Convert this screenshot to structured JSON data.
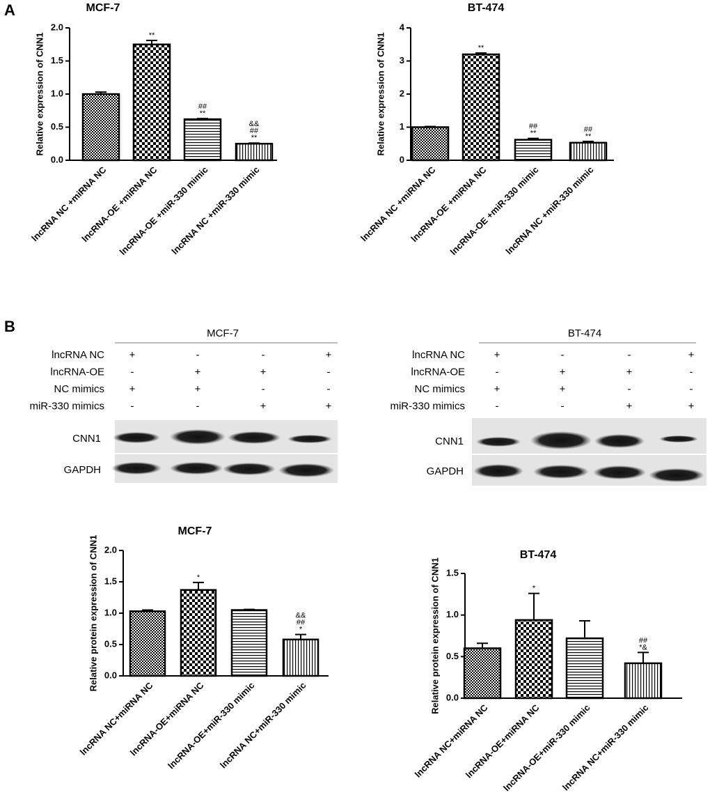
{
  "panels": [
    "A",
    "B"
  ],
  "chart_data": [
    {
      "type": "bar",
      "title": "MCF-7",
      "ylabel": "Relative expression of CNN1",
      "categories": [
        "lncRNA NC +miRNA NC",
        "lncRNA-OE +miRNA NC",
        "lncRNA-OE +miR-330 mimic",
        "lncRNA NC +miR-330 mimic"
      ],
      "values": [
        1.0,
        1.75,
        0.62,
        0.25
      ],
      "errors": [
        0.03,
        0.06,
        0.01,
        0.01
      ],
      "annotations": [
        [],
        [
          "**"
        ],
        [
          "##",
          "**"
        ],
        [
          "&&",
          "##",
          "**"
        ]
      ],
      "ylim": [
        0,
        2
      ],
      "yticks": [
        {
          "value": 0,
          "label": "0.0"
        },
        {
          "value": 0.5,
          "label": "0.5"
        },
        {
          "value": 1,
          "label": "1.0"
        },
        {
          "value": 1.5,
          "label": "1.5"
        },
        {
          "value": 2,
          "label": "2.0"
        }
      ]
    },
    {
      "type": "bar",
      "title": "BT-474",
      "ylabel": "Relative expression of CNN1",
      "categories": [
        "lncRNA NC +miRNA NC",
        "lncRNA-OE +miRNA NC",
        "lncRNA-OE +miR-330 mimic",
        "lncRNA NC +miR-330 mimic"
      ],
      "values": [
        1.0,
        3.2,
        0.62,
        0.53
      ],
      "errors": [
        0.02,
        0.04,
        0.04,
        0.04
      ],
      "annotations": [
        [],
        [
          "**"
        ],
        [
          "##",
          "**"
        ],
        [
          "##",
          "**"
        ]
      ],
      "ylim": [
        0,
        4
      ],
      "yticks": [
        0,
        1,
        2,
        3,
        4
      ]
    },
    {
      "type": "bar",
      "title": "MCF-7",
      "ylabel": "Relative protein expression of CNN1",
      "categories": [
        "lncRNA NC+miRNA NC",
        "lncRNA-OE+miRNA NC",
        "lncRNA-OE+miR-330 mimic",
        "lncRNA NC+miR-330 mimic"
      ],
      "values": [
        1.03,
        1.37,
        1.05,
        0.58
      ],
      "errors": [
        0.02,
        0.12,
        0.01,
        0.08
      ],
      "annotations": [
        [],
        [
          "*"
        ],
        [],
        [
          "&&",
          "##",
          "*"
        ]
      ],
      "ylim": [
        0,
        2
      ],
      "yticks": [
        {
          "value": 0,
          "label": "0.0"
        },
        {
          "value": 0.5,
          "label": "0.5"
        },
        {
          "value": 1,
          "label": "1.0"
        },
        {
          "value": 1.5,
          "label": "1.5"
        },
        {
          "value": 2,
          "label": "2.0"
        }
      ]
    },
    {
      "type": "bar",
      "title": "BT-474",
      "ylabel": "Relative protein expression of CNN1",
      "categories": [
        "lncRNA NC+miRNA NC",
        "lncRNA-OE+miRNA NC",
        "lncRNA-OE+miR-330 mimic",
        "lncRNA NC+miR-330 mimic"
      ],
      "values": [
        0.6,
        0.94,
        0.72,
        0.42
      ],
      "errors": [
        0.06,
        0.32,
        0.21,
        0.13
      ],
      "annotations": [
        [],
        [
          "*"
        ],
        [],
        [
          "##",
          "*&"
        ]
      ],
      "ylim": [
        0,
        1.5
      ],
      "yticks": [
        {
          "value": 0,
          "label": "0.0"
        },
        {
          "value": 0.5,
          "label": "0.5"
        },
        {
          "value": 1,
          "label": "1.0"
        },
        {
          "value": 1.5,
          "label": "1.5"
        }
      ]
    }
  ],
  "blots": [
    {
      "title": "MCF-7",
      "rows": [
        {
          "label": "lncRNA NC",
          "marks": [
            "+",
            "-",
            "-",
            "+"
          ]
        },
        {
          "label": "lncRNA-OE",
          "marks": [
            "-",
            "+",
            "+",
            "-"
          ]
        },
        {
          "label": "NC mimics",
          "marks": [
            "+",
            "+",
            "-",
            "-"
          ]
        },
        {
          "label": "miR-330 mimics",
          "marks": [
            "-",
            "-",
            "+",
            "+"
          ]
        }
      ],
      "bands": [
        "CNN1",
        "GAPDH"
      ]
    },
    {
      "title": "BT-474",
      "rows": [
        {
          "label": "lncRNA NC",
          "marks": [
            "+",
            "-",
            "-",
            "+"
          ]
        },
        {
          "label": "lncRNA-OE",
          "marks": [
            "-",
            "+",
            "+",
            "-"
          ]
        },
        {
          "label": "NC mimics",
          "marks": [
            "+",
            "+",
            "-",
            "-"
          ]
        },
        {
          "label": "miR-330 mimics",
          "marks": [
            "-",
            "-",
            "+",
            "+"
          ]
        }
      ],
      "bands": [
        "CNN1",
        "GAPDH"
      ]
    }
  ]
}
